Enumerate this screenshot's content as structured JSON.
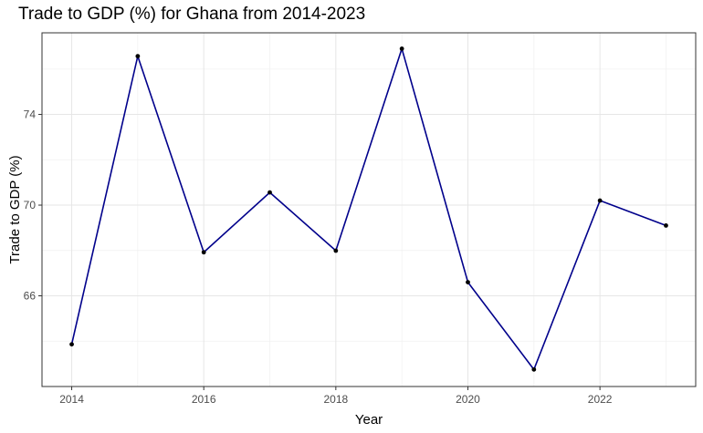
{
  "chart_data": {
    "type": "line",
    "title": "Trade to GDP (%) for Ghana from 2014-2023",
    "xlabel": "Year",
    "ylabel": "Trade to GDP (%)",
    "x": [
      2014,
      2015,
      2016,
      2017,
      2018,
      2019,
      2020,
      2021,
      2022,
      2023
    ],
    "series": [
      {
        "values": [
          63.86,
          76.57,
          67.92,
          70.56,
          67.99,
          76.9,
          66.6,
          62.75,
          70.2,
          69.1
        ]
      }
    ],
    "xlim": [
      2013.55,
      2023.45
    ],
    "ylim": [
      62.0,
      77.6
    ],
    "x_ticks": [
      "2014",
      "2016",
      "2018",
      "2020",
      "2022"
    ],
    "y_ticks": [
      "66",
      "70",
      "74"
    ],
    "grid": true,
    "legend": "none",
    "line_color": "#00008b",
    "marker_color": "#000000"
  }
}
